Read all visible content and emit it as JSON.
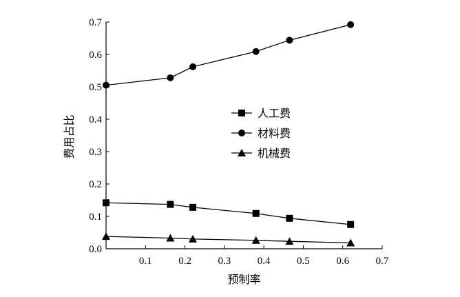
{
  "chart_data": {
    "type": "line",
    "title": "",
    "xlabel": "预制率",
    "ylabel": "费用占比",
    "xlim": [
      0,
      0.7
    ],
    "ylim": [
      0,
      0.7
    ],
    "xticks": [
      "0.1",
      "0.2",
      "0.3",
      "0.4",
      "0.5",
      "0.6",
      "0.7"
    ],
    "yticks": [
      "0.0",
      "0.1",
      "0.2",
      "0.3",
      "0.4",
      "0.5",
      "0.6",
      "0.7"
    ],
    "grid": false,
    "legend_position": "center-right",
    "series": [
      {
        "name": "人工费",
        "marker": "square",
        "color": "#000000",
        "x": [
          0.0,
          0.163,
          0.22,
          0.38,
          0.465,
          0.62
        ],
        "y": [
          0.142,
          0.137,
          0.128,
          0.109,
          0.094,
          0.075
        ]
      },
      {
        "name": "材料费",
        "marker": "circle",
        "color": "#000000",
        "x": [
          0.0,
          0.163,
          0.22,
          0.38,
          0.465,
          0.62
        ],
        "y": [
          0.505,
          0.528,
          0.562,
          0.609,
          0.644,
          0.692
        ]
      },
      {
        "name": "机械费",
        "marker": "triangle",
        "color": "#000000",
        "x": [
          0.0,
          0.163,
          0.22,
          0.38,
          0.465,
          0.62
        ],
        "y": [
          0.038,
          0.033,
          0.03,
          0.026,
          0.023,
          0.018
        ]
      }
    ]
  }
}
